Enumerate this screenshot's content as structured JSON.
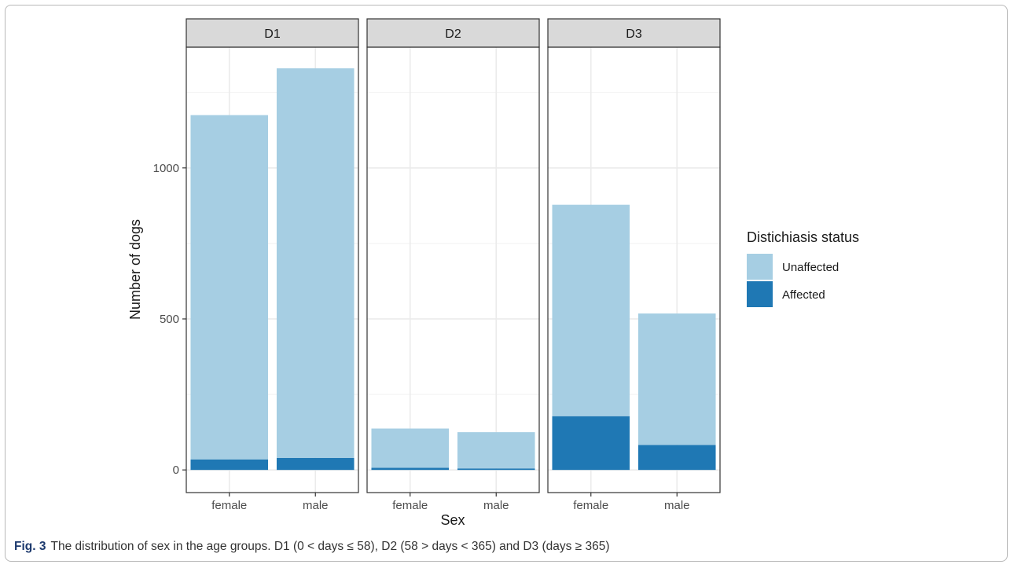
{
  "chart_data": {
    "type": "bar",
    "stacked": true,
    "facets": [
      "D1",
      "D2",
      "D3"
    ],
    "categories": [
      "female",
      "male"
    ],
    "series": [
      {
        "name": "Unaffected",
        "color": "#a6cee3",
        "values": {
          "D1": [
            1140,
            1290
          ],
          "D2": [
            130,
            120
          ],
          "D3": [
            700,
            435
          ]
        }
      },
      {
        "name": "Affected",
        "color": "#1f78b4",
        "values": {
          "D1": [
            35,
            40
          ],
          "D2": [
            7,
            5
          ],
          "D3": [
            178,
            83
          ]
        }
      }
    ],
    "xlabel": "Sex",
    "ylabel": "Number of dogs",
    "ylim": [
      -75,
      1400
    ],
    "yticks": [
      0,
      500,
      1000
    ],
    "grid": true,
    "legend_title": "Distichiasis status",
    "legend_position": "right"
  },
  "caption": {
    "label": "Fig. 3",
    "text": "The distribution of sex in the age groups. D1 (0 < days ≤ 58), D2 (58 > days < 365) and D3 (days ≥ 365)"
  }
}
